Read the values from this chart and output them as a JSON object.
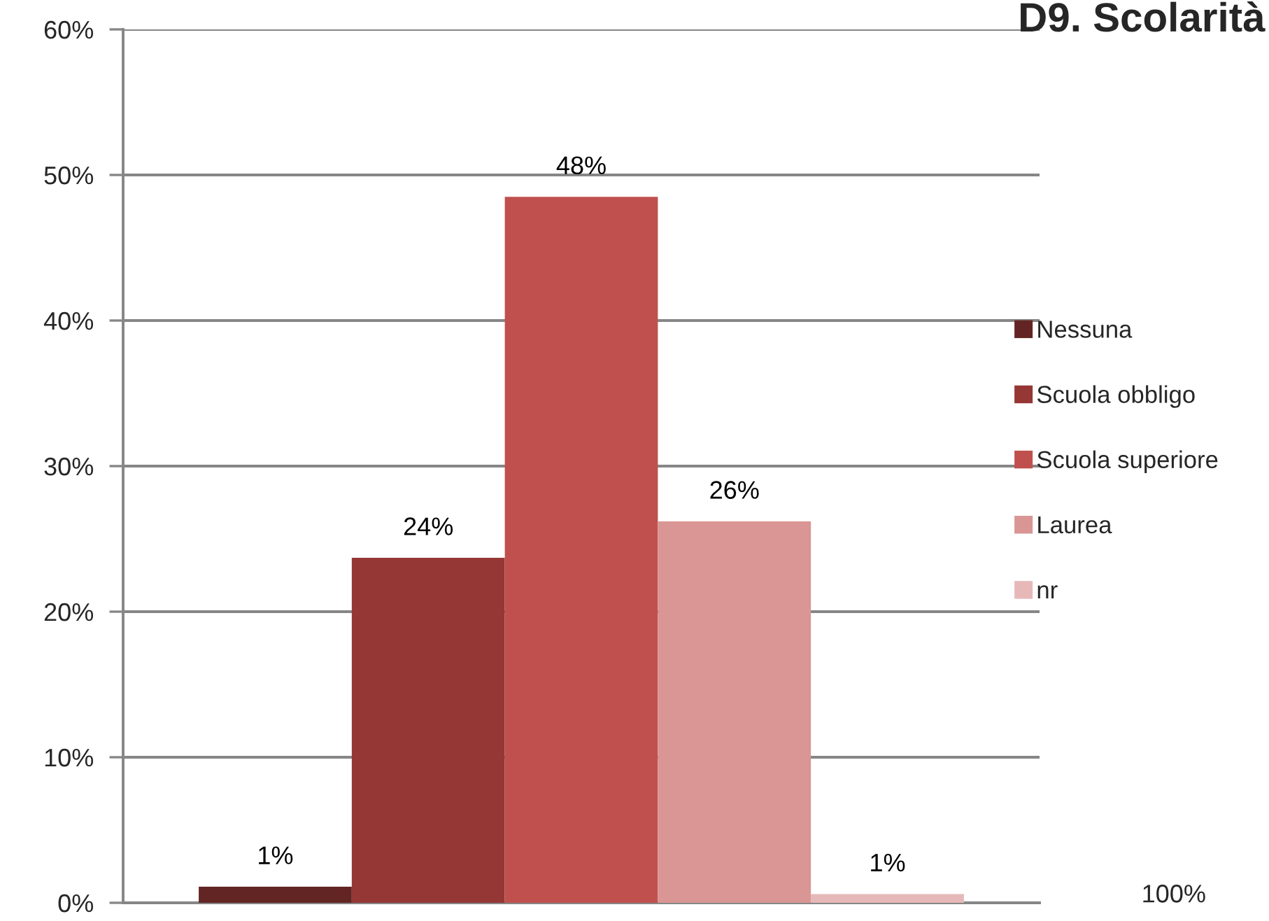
{
  "chart_data": {
    "type": "bar",
    "title": "D9. Scolarità",
    "categories": [
      null
    ],
    "series": [
      {
        "name": "Nessuna",
        "color": "#632523",
        "values": [
          1.1
        ],
        "value_labels": [
          "1%"
        ]
      },
      {
        "name": "Scuola obbligo",
        "color": "#953735",
        "values": [
          23.7
        ],
        "value_labels": [
          "24%"
        ]
      },
      {
        "name": "Scuola superiore",
        "color": "#c0504d",
        "values": [
          48.5
        ],
        "value_labels": [
          "48%"
        ]
      },
      {
        "name": "Laurea",
        "color": "#d99694",
        "values": [
          26.2
        ],
        "value_labels": [
          "26%"
        ]
      },
      {
        "name": "nr",
        "color": "#e6b9b8",
        "values": [
          0.6
        ],
        "value_labels": [
          "1%"
        ]
      }
    ],
    "ylim": [
      0,
      60
    ],
    "yticks": [
      {
        "value": 0,
        "label": "0%"
      },
      {
        "value": 10,
        "label": "10%"
      },
      {
        "value": 20,
        "label": "20%"
      },
      {
        "value": 30,
        "label": "30%"
      },
      {
        "value": 40,
        "label": "40%"
      },
      {
        "value": 50,
        "label": "50%"
      },
      {
        "value": 60,
        "label": "60%"
      }
    ],
    "grid": "y",
    "legend": "right",
    "tick_labels": "y",
    "annotations": [
      "100%"
    ]
  }
}
